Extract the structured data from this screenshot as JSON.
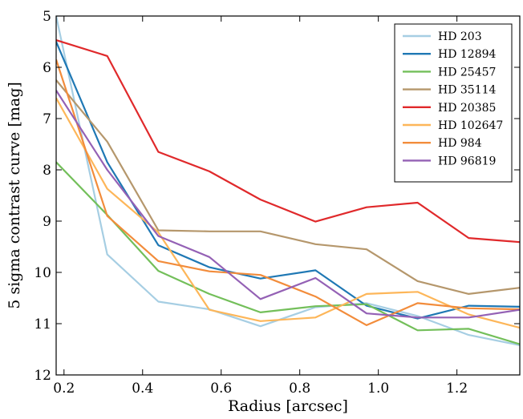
{
  "chart_data": {
    "type": "line",
    "title": "",
    "xlabel": "Radius [arcsec]",
    "ylabel": "5 sigma contrast curve [mag]",
    "xlim": [
      0.18,
      1.36
    ],
    "ylim": [
      12,
      5
    ],
    "y_inverted": true,
    "grid": false,
    "legend_position": "top-right",
    "x_ticks": [
      0.2,
      0.4,
      0.6,
      0.8,
      1.0,
      1.2
    ],
    "x_tick_labels": [
      "0.2",
      "0.4",
      "0.6",
      "0.8",
      "1.0",
      "1.2"
    ],
    "y_ticks": [
      5,
      6,
      7,
      8,
      9,
      10,
      11,
      12
    ],
    "y_tick_labels": [
      "5",
      "6",
      "7",
      "8",
      "9",
      "10",
      "11",
      "12"
    ],
    "x": [
      0.18,
      0.31,
      0.44,
      0.57,
      0.7,
      0.84,
      0.97,
      1.1,
      1.23,
      1.36
    ],
    "series": [
      {
        "name": "HD 203",
        "color": "#a6cee3",
        "values": [
          5.0,
          9.65,
          10.57,
          10.72,
          11.05,
          10.68,
          10.6,
          10.85,
          11.22,
          11.42
        ]
      },
      {
        "name": "HD 12894",
        "color": "#1f78b4",
        "values": [
          5.5,
          7.85,
          9.47,
          9.9,
          10.12,
          9.96,
          10.65,
          10.9,
          10.65,
          10.67
        ]
      },
      {
        "name": "HD 25457",
        "color": "#73bf5a",
        "values": [
          7.85,
          8.88,
          9.97,
          10.42,
          10.78,
          10.66,
          10.62,
          11.13,
          11.1,
          11.4
        ]
      },
      {
        "name": "HD 35114",
        "color": "#b5976c",
        "values": [
          6.25,
          7.45,
          9.18,
          9.2,
          9.2,
          9.45,
          9.55,
          10.17,
          10.42,
          10.3
        ]
      },
      {
        "name": "HD 20385",
        "color": "#e0292b",
        "values": [
          5.47,
          5.78,
          7.65,
          8.03,
          8.58,
          9.01,
          8.73,
          8.64,
          9.33,
          9.41
        ]
      },
      {
        "name": "HD 102647",
        "color": "#fdb659",
        "values": [
          6.6,
          8.37,
          9.22,
          10.73,
          10.95,
          10.88,
          10.42,
          10.38,
          10.82,
          11.08
        ]
      },
      {
        "name": "HD 984",
        "color": "#f28c3b",
        "values": [
          5.85,
          8.9,
          9.78,
          9.98,
          10.05,
          10.47,
          11.03,
          10.6,
          10.7,
          10.72
        ]
      },
      {
        "name": "HD 96819",
        "color": "#9461b5",
        "values": [
          6.45,
          8.0,
          9.29,
          9.7,
          10.52,
          10.11,
          10.8,
          10.88,
          10.88,
          10.73
        ]
      }
    ]
  }
}
